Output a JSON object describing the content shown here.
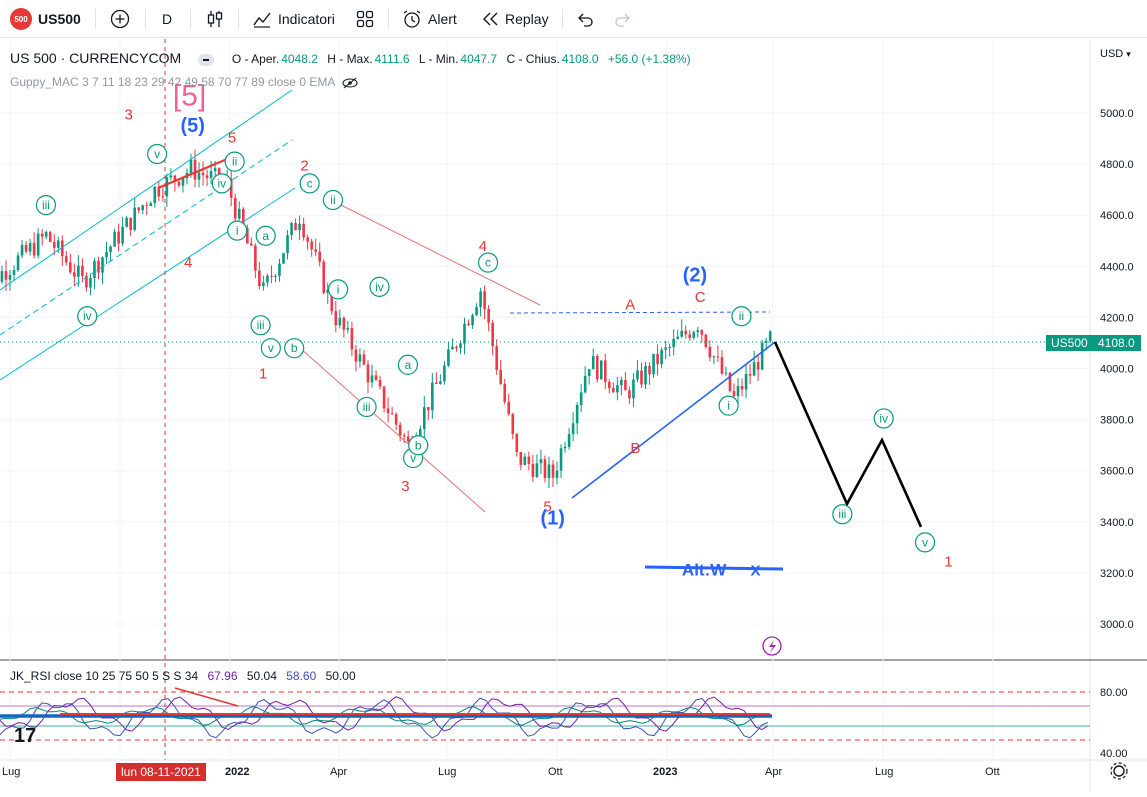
{
  "toolbar": {
    "symbol": "US500",
    "logo_text": "500",
    "interval": "D",
    "indicators_label": "Indicatori",
    "alert_label": "Alert",
    "replay_label": "Replay"
  },
  "legend": {
    "symbol_title": "US 500 · CURRENCYCOM",
    "open_label": "O - Aper.",
    "open": "4048.2",
    "high_label": "H - Max.",
    "high": "4111.6",
    "low_label": "L - Min.",
    "low": "4047.7",
    "close_label": "C - Chius.",
    "close": "4108.0",
    "change": "+56.0 (+1.38%)",
    "indicator": "Guppy_MAC 3 7 11 18 23 29 42 49 58 70 77 89 close 0 EMA"
  },
  "rsi_legend": {
    "label": "JK_RSI close 10 25 75 50 5 S S 34",
    "values": [
      "67.96",
      "50.04",
      "58.60",
      "50.00"
    ]
  },
  "price_axis": {
    "currency": "USD",
    "ticks": [
      "5000.0",
      "4800.0",
      "4600.0",
      "4400.0",
      "4200.0",
      "4000.0",
      "3800.0",
      "3600.0",
      "3400.0",
      "3200.0",
      "3000.0"
    ],
    "current_symbol": "US500",
    "current_price": "4108.0",
    "rsi_ticks": [
      "80.00",
      "40.00"
    ]
  },
  "time_axis": {
    "ticks": [
      "Lug",
      "2022",
      "Apr",
      "Lug",
      "Ott",
      "2023",
      "Apr",
      "Lug",
      "Ott"
    ],
    "crosshair_date": "lun 08-11-2021"
  },
  "colors": {
    "up": "#089981",
    "down": "#f23645",
    "wave_red": "#e53935",
    "wave_blue": "#2962ff",
    "wave_green": "#089981",
    "channel": "#00bcd4",
    "pink": "#f06292"
  },
  "chart_data": {
    "type": "line",
    "series": [
      {
        "x": [
          "2021-06",
          "2021-07",
          "2021-08",
          "2021-09",
          "2021-10",
          "2021-11",
          "2021-12",
          "2022-01",
          "2022-02",
          "2022-03",
          "2022-04",
          "2022-05",
          "2022-06",
          "2022-07",
          "2022-08",
          "2022-09",
          "2022-10",
          "2022-11",
          "2022-12",
          "2023-01",
          "2023-02",
          "2023-03",
          "2023-04"
        ],
        "values": [
          4290,
          4400,
          4520,
          4340,
          4520,
          4700,
          4780,
          4720,
          4300,
          4600,
          4200,
          3950,
          3700,
          4000,
          4310,
          3650,
          3580,
          4030,
          3900,
          4050,
          4180,
          3880,
          4108
        ]
      }
    ],
    "projection": {
      "x": [
        "2023-04",
        "2023-06",
        "2023-07",
        "2023-09"
      ],
      "values": [
        4110,
        3470,
        3720,
        3380
      ]
    },
    "ylim": [
      2870,
      5150
    ],
    "wave_labels": [
      {
        "text": "[5]",
        "color": "pink",
        "x": "2021-12",
        "y": 5030
      },
      {
        "text": "(5)",
        "color": "wave_blue",
        "x": "2021-12",
        "y": 4925
      },
      {
        "text": "5",
        "color": "wave_red",
        "x": "2022-01",
        "y": 4885
      },
      {
        "text": "3",
        "color": "wave_red",
        "x": "2021-10",
        "y": 4975
      },
      {
        "text": "4",
        "color": "wave_red",
        "x": "2021-12",
        "y": 4395
      },
      {
        "text": "v",
        "color": "wave_green",
        "x": "2021-11",
        "y": 4820
      },
      {
        "text": "ii",
        "color": "wave_green",
        "x": "2022-01",
        "y": 4790
      },
      {
        "text": "iv",
        "color": "wave_green",
        "x": "2022-01",
        "y": 4705
      },
      {
        "text": "iii",
        "color": "wave_green",
        "x": "2021-08",
        "y": 4620
      },
      {
        "text": "iv",
        "color": "wave_green",
        "x": "2021-09",
        "y": 4185
      },
      {
        "text": "i",
        "color": "wave_green",
        "x": "2022-01",
        "y": 4520
      },
      {
        "text": "iii",
        "color": "wave_green",
        "x": "2022-02",
        "y": 4150
      },
      {
        "text": "a",
        "color": "wave_green",
        "x": "2022-02",
        "y": 4500
      },
      {
        "text": "v",
        "color": "wave_green",
        "x": "2022-02",
        "y": 4060
      },
      {
        "text": "b",
        "color": "wave_green",
        "x": "2022-03",
        "y": 4060
      },
      {
        "text": "1",
        "color": "wave_red",
        "x": "2022-02",
        "y": 3960
      },
      {
        "text": "2",
        "color": "wave_red",
        "x": "2022-03",
        "y": 4775
      },
      {
        "text": "c",
        "color": "wave_green",
        "x": "2022-03",
        "y": 4705
      },
      {
        "text": "ii",
        "color": "wave_green",
        "x": "2022-04",
        "y": 4640
      },
      {
        "text": "i",
        "color": "wave_green",
        "x": "2022-04",
        "y": 4290
      },
      {
        "text": "iv",
        "color": "wave_green",
        "x": "2022-05",
        "y": 4300
      },
      {
        "text": "iii",
        "color": "wave_green",
        "x": "2022-05",
        "y": 3830
      },
      {
        "text": "a",
        "color": "wave_green",
        "x": "2022-06",
        "y": 3995
      },
      {
        "text": "v",
        "color": "wave_green",
        "x": "2022-06",
        "y": 3630
      },
      {
        "text": "b",
        "color": "wave_green",
        "x": "2022-06",
        "y": 3680
      },
      {
        "text": "3",
        "color": "wave_red",
        "x": "2022-06",
        "y": 3520
      },
      {
        "text": "4",
        "color": "wave_red",
        "x": "2022-08",
        "y": 4460
      },
      {
        "text": "c",
        "color": "wave_green",
        "x": "2022-08",
        "y": 4395
      },
      {
        "text": "5",
        "color": "wave_red",
        "x": "2022-10",
        "y": 3440
      },
      {
        "text": "(1)",
        "color": "wave_blue",
        "x": "2022-10",
        "y": 3390
      },
      {
        "text": "A",
        "color": "wave_red",
        "x": "2022-12",
        "y": 4230
      },
      {
        "text": "B",
        "color": "wave_red",
        "x": "2022-12",
        "y": 3670
      },
      {
        "text": "(2)",
        "color": "wave_blue",
        "x": "2023-02",
        "y": 4340
      },
      {
        "text": "C",
        "color": "wave_red",
        "x": "2023-02",
        "y": 4260
      },
      {
        "text": "ii",
        "color": "wave_green",
        "x": "2023-03",
        "y": 4185
      },
      {
        "text": "i",
        "color": "wave_green",
        "x": "2023-03",
        "y": 3835
      },
      {
        "text": "iii",
        "color": "wave_green",
        "x": "2023-06",
        "y": 3410
      },
      {
        "text": "iv",
        "color": "wave_green",
        "x": "2023-07",
        "y": 3785
      },
      {
        "text": "v",
        "color": "wave_green",
        "x": "2023-08",
        "y": 3300
      },
      {
        "text": "1",
        "color": "wave_red",
        "x": "2023-09",
        "y": 3225
      },
      {
        "text": "Alt:W",
        "color": "wave_blue",
        "x": "2023-02",
        "y": 3190
      },
      {
        "text": "X",
        "color": "wave_blue",
        "x": "2023-03",
        "y": 3190
      }
    ],
    "grid": true
  }
}
